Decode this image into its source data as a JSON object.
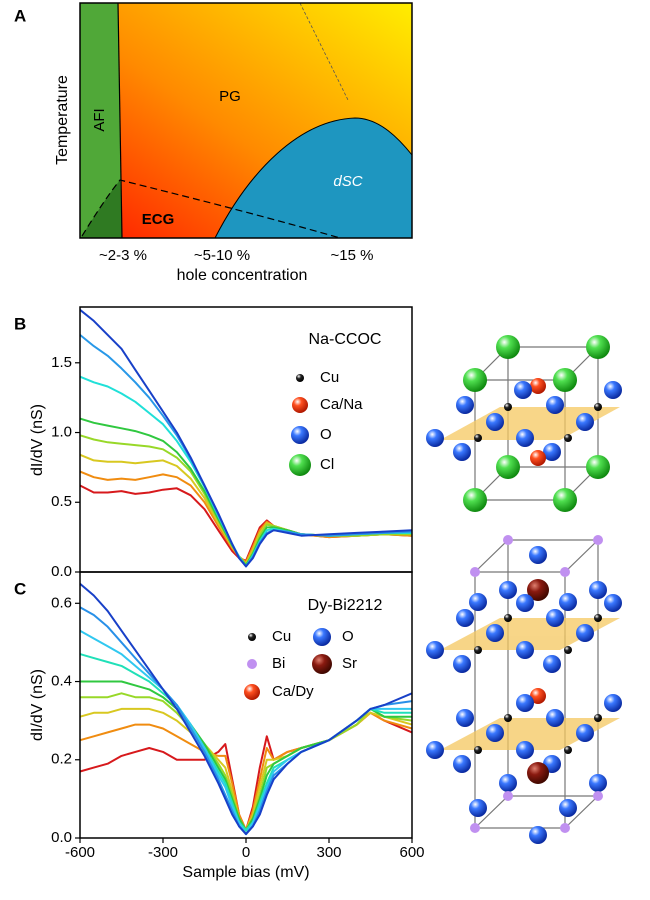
{
  "phase_diagram": {
    "panel": "A",
    "ylabel": "Temperature",
    "xlabel": "hole concentration",
    "xtick_labels": [
      "~2-3 %",
      "~5-10 %",
      "~15 %"
    ],
    "regions": [
      "AFI",
      "PG",
      "ECG",
      "dSC"
    ]
  },
  "chart_data": [
    {
      "type": "line",
      "panel": "B",
      "annotation": "Na-CCOC",
      "ylabel": "dI/dV (nS)",
      "atom_legend": [
        {
          "label": "Cu",
          "color": "#111111"
        },
        {
          "label": "Ca/Na",
          "color": "#e8401c"
        },
        {
          "label": "O",
          "color": "#1f5fe0"
        },
        {
          "label": "Cl",
          "color": "#3cc83c"
        }
      ],
      "xlim": [
        -600,
        600
      ],
      "ylim": [
        0,
        1.9
      ],
      "yticks": [
        {
          "value": 0,
          "label": "0.0"
        },
        0.5,
        {
          "value": 1,
          "label": "1.0"
        },
        1.5
      ],
      "x": [
        -600,
        -550,
        -500,
        -450,
        -400,
        -350,
        -300,
        -250,
        -200,
        -150,
        -100,
        -50,
        -25,
        0,
        25,
        50,
        75,
        100,
        150,
        200,
        300,
        400,
        500,
        600
      ],
      "series": [
        {
          "color": "#d7191c",
          "values": [
            0.62,
            0.57,
            0.57,
            0.58,
            0.56,
            0.57,
            0.59,
            0.6,
            0.55,
            0.45,
            0.3,
            0.15,
            0.1,
            0.08,
            0.2,
            0.32,
            0.37,
            0.33,
            0.3,
            0.27,
            0.25,
            0.26,
            0.27,
            0.26
          ]
        },
        {
          "color": "#f08c10",
          "values": [
            0.72,
            0.68,
            0.66,
            0.67,
            0.66,
            0.68,
            0.7,
            0.68,
            0.62,
            0.5,
            0.33,
            0.17,
            0.11,
            0.07,
            0.18,
            0.3,
            0.36,
            0.33,
            0.3,
            0.27,
            0.25,
            0.26,
            0.27,
            0.26
          ]
        },
        {
          "color": "#d8c820",
          "values": [
            0.84,
            0.8,
            0.79,
            0.79,
            0.78,
            0.79,
            0.8,
            0.76,
            0.67,
            0.53,
            0.35,
            0.18,
            0.11,
            0.06,
            0.16,
            0.28,
            0.35,
            0.33,
            0.3,
            0.27,
            0.26,
            0.26,
            0.27,
            0.27
          ]
        },
        {
          "color": "#98d828",
          "values": [
            0.98,
            0.95,
            0.93,
            0.92,
            0.91,
            0.9,
            0.88,
            0.82,
            0.72,
            0.56,
            0.37,
            0.19,
            0.11,
            0.05,
            0.14,
            0.26,
            0.34,
            0.33,
            0.3,
            0.27,
            0.26,
            0.26,
            0.27,
            0.27
          ]
        },
        {
          "color": "#30c840",
          "values": [
            1.1,
            1.07,
            1.05,
            1.03,
            1.01,
            0.98,
            0.94,
            0.86,
            0.74,
            0.58,
            0.38,
            0.19,
            0.11,
            0.05,
            0.13,
            0.24,
            0.32,
            0.32,
            0.3,
            0.27,
            0.26,
            0.27,
            0.28,
            0.28
          ]
        },
        {
          "color": "#20e0d8",
          "values": [
            1.4,
            1.36,
            1.33,
            1.28,
            1.22,
            1.14,
            1.06,
            0.94,
            0.79,
            0.61,
            0.4,
            0.2,
            0.11,
            0.04,
            0.12,
            0.22,
            0.3,
            0.31,
            0.29,
            0.27,
            0.26,
            0.27,
            0.28,
            0.28
          ]
        },
        {
          "color": "#2898e8",
          "values": [
            1.7,
            1.62,
            1.55,
            1.46,
            1.36,
            1.25,
            1.12,
            0.98,
            0.81,
            0.62,
            0.41,
            0.2,
            0.1,
            0.04,
            0.11,
            0.21,
            0.28,
            0.3,
            0.29,
            0.27,
            0.26,
            0.27,
            0.28,
            0.29
          ]
        },
        {
          "color": "#1840c8",
          "values": [
            1.88,
            1.8,
            1.7,
            1.6,
            1.45,
            1.3,
            1.15,
            1.0,
            0.82,
            0.62,
            0.42,
            0.2,
            0.1,
            0.04,
            0.1,
            0.2,
            0.27,
            0.3,
            0.28,
            0.26,
            0.27,
            0.28,
            0.29,
            0.3
          ]
        }
      ]
    },
    {
      "type": "line",
      "panel": "C",
      "annotation": "Dy-Bi2212",
      "ylabel": "dI/dV (nS)",
      "xlabel": "Sample bias (mV)",
      "atom_legend": [
        {
          "label": "Cu",
          "color": "#111111"
        },
        {
          "label": "O",
          "color": "#1f5fe0"
        },
        {
          "label": "Bi",
          "color": "#c090f0"
        },
        {
          "label": "Sr",
          "color": "#8a1a10"
        },
        {
          "label": "Ca/Dy",
          "color": "#e8401c"
        }
      ],
      "xlim": [
        -600,
        600
      ],
      "ylim": [
        0,
        0.68
      ],
      "xticks": [
        -600,
        -300,
        0,
        300,
        600
      ],
      "yticks": [
        {
          "value": 0,
          "label": "0.0"
        },
        0.2,
        0.4,
        0.6
      ],
      "x": [
        -600,
        -550,
        -500,
        -450,
        -400,
        -350,
        -300,
        -250,
        -200,
        -150,
        -100,
        -75,
        -50,
        -25,
        0,
        25,
        50,
        75,
        100,
        150,
        200,
        300,
        400,
        450,
        500,
        600
      ],
      "series": [
        {
          "color": "#d7191c",
          "values": [
            0.17,
            0.18,
            0.19,
            0.21,
            0.22,
            0.23,
            0.22,
            0.2,
            0.2,
            0.2,
            0.22,
            0.24,
            0.15,
            0.06,
            0.02,
            0.08,
            0.18,
            0.26,
            0.2,
            0.22,
            0.23,
            0.25,
            0.29,
            0.32,
            0.3,
            0.27
          ]
        },
        {
          "color": "#f08c10",
          "values": [
            0.25,
            0.26,
            0.27,
            0.28,
            0.29,
            0.29,
            0.28,
            0.26,
            0.24,
            0.22,
            0.21,
            0.21,
            0.14,
            0.06,
            0.02,
            0.07,
            0.15,
            0.23,
            0.2,
            0.22,
            0.23,
            0.25,
            0.29,
            0.32,
            0.3,
            0.28
          ]
        },
        {
          "color": "#d8c820",
          "values": [
            0.31,
            0.32,
            0.32,
            0.33,
            0.33,
            0.33,
            0.32,
            0.3,
            0.27,
            0.24,
            0.2,
            0.18,
            0.12,
            0.05,
            0.02,
            0.06,
            0.13,
            0.2,
            0.2,
            0.21,
            0.23,
            0.25,
            0.29,
            0.32,
            0.31,
            0.29
          ]
        },
        {
          "color": "#98d828",
          "values": [
            0.36,
            0.36,
            0.36,
            0.37,
            0.36,
            0.36,
            0.35,
            0.32,
            0.28,
            0.24,
            0.19,
            0.16,
            0.11,
            0.05,
            0.02,
            0.05,
            0.11,
            0.18,
            0.19,
            0.21,
            0.23,
            0.25,
            0.29,
            0.33,
            0.31,
            0.3
          ]
        },
        {
          "color": "#30c840",
          "values": [
            0.4,
            0.4,
            0.4,
            0.4,
            0.39,
            0.38,
            0.36,
            0.33,
            0.29,
            0.24,
            0.18,
            0.15,
            0.1,
            0.05,
            0.02,
            0.05,
            0.1,
            0.16,
            0.19,
            0.21,
            0.23,
            0.25,
            0.3,
            0.33,
            0.31,
            0.31
          ]
        },
        {
          "color": "#20e0b8",
          "values": [
            0.47,
            0.46,
            0.45,
            0.44,
            0.42,
            0.4,
            0.37,
            0.34,
            0.29,
            0.23,
            0.17,
            0.14,
            0.09,
            0.04,
            0.02,
            0.04,
            0.09,
            0.14,
            0.18,
            0.2,
            0.22,
            0.25,
            0.3,
            0.33,
            0.32,
            0.32
          ]
        },
        {
          "color": "#30c8f0",
          "values": [
            0.53,
            0.51,
            0.49,
            0.47,
            0.44,
            0.41,
            0.38,
            0.34,
            0.29,
            0.23,
            0.16,
            0.13,
            0.08,
            0.04,
            0.01,
            0.04,
            0.08,
            0.13,
            0.17,
            0.2,
            0.22,
            0.25,
            0.3,
            0.33,
            0.33,
            0.33
          ]
        },
        {
          "color": "#2890e8",
          "values": [
            0.59,
            0.57,
            0.54,
            0.5,
            0.46,
            0.42,
            0.38,
            0.34,
            0.28,
            0.22,
            0.15,
            0.11,
            0.07,
            0.03,
            0.01,
            0.03,
            0.07,
            0.12,
            0.16,
            0.19,
            0.22,
            0.25,
            0.3,
            0.33,
            0.34,
            0.35
          ]
        },
        {
          "color": "#1840c8",
          "values": [
            0.65,
            0.62,
            0.58,
            0.53,
            0.48,
            0.43,
            0.38,
            0.33,
            0.27,
            0.21,
            0.14,
            0.1,
            0.06,
            0.03,
            0.01,
            0.03,
            0.06,
            0.11,
            0.15,
            0.19,
            0.22,
            0.25,
            0.3,
            0.33,
            0.34,
            0.37
          ]
        }
      ]
    }
  ]
}
